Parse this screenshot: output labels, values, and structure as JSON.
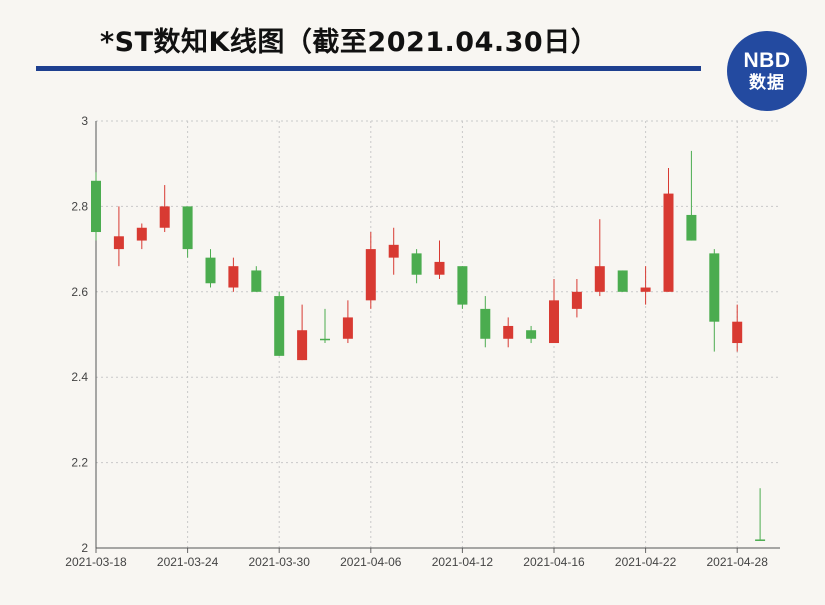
{
  "header": {
    "title": "*ST数知K线图（截至2021.04.30日）",
    "logo_line1": "NBD",
    "logo_line2": "数据"
  },
  "colors": {
    "up": "#d83a32",
    "down": "#4bac4f",
    "accent": "#1e3f8f",
    "logo_bg": "#234aa0"
  },
  "chart_data": {
    "type": "candlestick",
    "title": "*ST数知K线图（截至2021.04.30日）",
    "ylim": [
      2,
      3
    ],
    "yticks": [
      2,
      2.2,
      2.4,
      2.6,
      2.8,
      3
    ],
    "xticks": [
      "2021-03-18",
      "2021-03-24",
      "2021-03-30",
      "2021-04-06",
      "2021-04-12",
      "2021-04-16",
      "2021-04-22",
      "2021-04-28"
    ],
    "grid": true,
    "candles": [
      {
        "date": "2021-03-18",
        "open": 2.86,
        "close": 2.74,
        "high": 2.88,
        "low": 2.72
      },
      {
        "date": "2021-03-19",
        "open": 2.7,
        "close": 2.73,
        "high": 2.8,
        "low": 2.66
      },
      {
        "date": "2021-03-22",
        "open": 2.72,
        "close": 2.75,
        "high": 2.76,
        "low": 2.7
      },
      {
        "date": "2021-03-23",
        "open": 2.75,
        "close": 2.8,
        "high": 2.85,
        "low": 2.74
      },
      {
        "date": "2021-03-24",
        "open": 2.8,
        "close": 2.7,
        "high": 2.8,
        "low": 2.68
      },
      {
        "date": "2021-03-25",
        "open": 2.68,
        "close": 2.62,
        "high": 2.7,
        "low": 2.61
      },
      {
        "date": "2021-03-26",
        "open": 2.61,
        "close": 2.66,
        "high": 2.68,
        "low": 2.6
      },
      {
        "date": "2021-03-29",
        "open": 2.65,
        "close": 2.6,
        "high": 2.66,
        "low": 2.6
      },
      {
        "date": "2021-03-30",
        "open": 2.59,
        "close": 2.45,
        "high": 2.6,
        "low": 2.45
      },
      {
        "date": "2021-03-31",
        "open": 2.44,
        "close": 2.51,
        "high": 2.57,
        "low": 2.44
      },
      {
        "date": "2021-04-01",
        "open": 2.49,
        "close": 2.49,
        "high": 2.56,
        "low": 2.48
      },
      {
        "date": "2021-04-02",
        "open": 2.49,
        "close": 2.54,
        "high": 2.58,
        "low": 2.48
      },
      {
        "date": "2021-04-06",
        "open": 2.58,
        "close": 2.7,
        "high": 2.74,
        "low": 2.56
      },
      {
        "date": "2021-04-07",
        "open": 2.68,
        "close": 2.71,
        "high": 2.75,
        "low": 2.64
      },
      {
        "date": "2021-04-08",
        "open": 2.69,
        "close": 2.64,
        "high": 2.7,
        "low": 2.62
      },
      {
        "date": "2021-04-09",
        "open": 2.64,
        "close": 2.67,
        "high": 2.72,
        "low": 2.63
      },
      {
        "date": "2021-04-12",
        "open": 2.66,
        "close": 2.57,
        "high": 2.66,
        "low": 2.56
      },
      {
        "date": "2021-04-13",
        "open": 2.56,
        "close": 2.49,
        "high": 2.59,
        "low": 2.47
      },
      {
        "date": "2021-04-14",
        "open": 2.49,
        "close": 2.52,
        "high": 2.54,
        "low": 2.47
      },
      {
        "date": "2021-04-15",
        "open": 2.51,
        "close": 2.49,
        "high": 2.52,
        "low": 2.48
      },
      {
        "date": "2021-04-16",
        "open": 2.48,
        "close": 2.58,
        "high": 2.63,
        "low": 2.48
      },
      {
        "date": "2021-04-19",
        "open": 2.56,
        "close": 2.6,
        "high": 2.63,
        "low": 2.54
      },
      {
        "date": "2021-04-20",
        "open": 2.6,
        "close": 2.66,
        "high": 2.77,
        "low": 2.59
      },
      {
        "date": "2021-04-21",
        "open": 2.65,
        "close": 2.6,
        "high": 2.65,
        "low": 2.6
      },
      {
        "date": "2021-04-22",
        "open": 2.6,
        "close": 2.61,
        "high": 2.66,
        "low": 2.57
      },
      {
        "date": "2021-04-23",
        "open": 2.6,
        "close": 2.83,
        "high": 2.89,
        "low": 2.6
      },
      {
        "date": "2021-04-26",
        "open": 2.78,
        "close": 2.72,
        "high": 2.93,
        "low": 2.72
      },
      {
        "date": "2021-04-27",
        "open": 2.69,
        "close": 2.53,
        "high": 2.7,
        "low": 2.46
      },
      {
        "date": "2021-04-28",
        "open": 2.48,
        "close": 2.53,
        "high": 2.57,
        "low": 2.46
      },
      {
        "date": "2021-04-29",
        "open": 2.02,
        "close": 2.02,
        "high": 2.14,
        "low": 2.02
      }
    ]
  }
}
